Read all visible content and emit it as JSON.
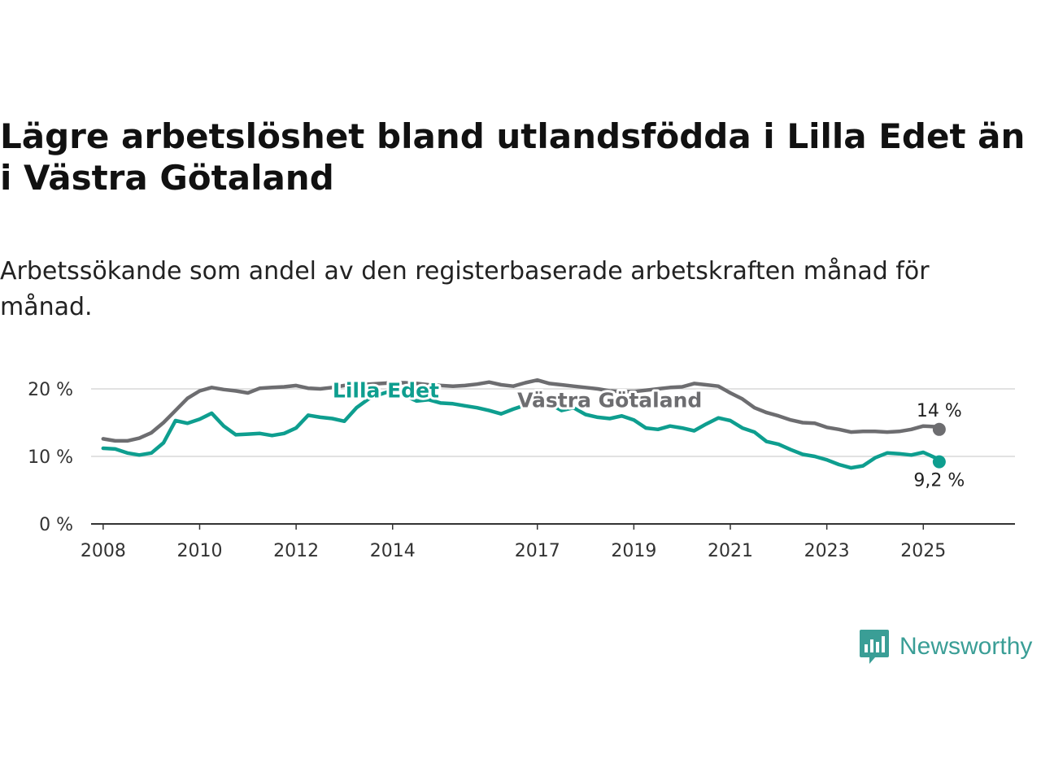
{
  "title": "Lägre arbetslöshet bland utlandsfödda i Lilla Edet än i Västra Götaland",
  "subtitle": "Arbetssökande som andel av den registerbaserade arbetskraften månad för månad.",
  "brand": {
    "name": "Newsworthy",
    "icon": "newsworthy-logo-icon",
    "color": "#3a9e96"
  },
  "chart_data": {
    "type": "line",
    "title": "Lägre arbetslöshet bland utlandsfödda i Lilla Edet än i Västra Götaland",
    "subtitle": "Arbetssökande som andel av den registerbaserade arbetskraften månad för månad.",
    "xlabel": "",
    "ylabel": "",
    "xlim": [
      2007.75,
      2026.9
    ],
    "ylim": [
      0,
      20
    ],
    "y_ticks": [
      0,
      10,
      20
    ],
    "y_tick_labels": [
      "0 %",
      "10 %",
      "20 %"
    ],
    "x_ticks": [
      2008,
      2010,
      2012,
      2014,
      2017,
      2019,
      2021,
      2023,
      2025
    ],
    "x_tick_labels": [
      "2008",
      "2010",
      "2012",
      "2014",
      "2017",
      "2019",
      "2021",
      "2023",
      "2025"
    ],
    "grid": true,
    "legend": "inline labels",
    "series": [
      {
        "name": "Västra Götaland",
        "color": "#6d6d70",
        "end_label": "14 %",
        "x": [
          2008.0,
          2008.25,
          2008.5,
          2008.75,
          2009.0,
          2009.25,
          2009.5,
          2009.75,
          2010.0,
          2010.25,
          2010.5,
          2010.75,
          2011.0,
          2011.25,
          2011.5,
          2011.75,
          2012.0,
          2012.25,
          2012.5,
          2012.75,
          2013.0,
          2013.25,
          2013.5,
          2013.75,
          2014.0,
          2014.25,
          2014.5,
          2014.75,
          2015.0,
          2015.25,
          2015.5,
          2015.75,
          2016.0,
          2016.25,
          2016.5,
          2016.75,
          2017.0,
          2017.25,
          2017.5,
          2017.75,
          2018.0,
          2018.25,
          2018.5,
          2018.75,
          2019.0,
          2019.25,
          2019.5,
          2019.75,
          2020.0,
          2020.25,
          2020.5,
          2020.75,
          2021.0,
          2021.25,
          2021.5,
          2021.75,
          2022.0,
          2022.25,
          2022.5,
          2022.75,
          2023.0,
          2023.25,
          2023.5,
          2023.75,
          2024.0,
          2024.25,
          2024.5,
          2024.75,
          2025.0,
          2025.25,
          2025.33
        ],
        "values": [
          12.6,
          12.3,
          12.3,
          12.7,
          13.5,
          15.0,
          16.8,
          18.6,
          19.7,
          20.2,
          19.9,
          19.7,
          19.4,
          20.1,
          20.2,
          20.3,
          20.5,
          20.1,
          20.0,
          20.2,
          20.5,
          20.6,
          20.7,
          20.8,
          20.9,
          20.9,
          20.8,
          20.6,
          20.5,
          20.4,
          20.5,
          20.7,
          21.0,
          20.6,
          20.4,
          20.9,
          21.3,
          20.8,
          20.6,
          20.4,
          20.2,
          20.0,
          19.7,
          19.6,
          19.6,
          19.8,
          20.0,
          20.2,
          20.3,
          20.8,
          20.6,
          20.4,
          19.4,
          18.5,
          17.2,
          16.5,
          16.0,
          15.4,
          15.0,
          14.9,
          14.3,
          14.0,
          13.6,
          13.7,
          13.7,
          13.6,
          13.7,
          14.0,
          14.5,
          14.4,
          14.0
        ]
      },
      {
        "name": "Lilla Edet",
        "color": "#0e9e8f",
        "end_label": "9,2 %",
        "x": [
          2008.0,
          2008.25,
          2008.5,
          2008.75,
          2009.0,
          2009.25,
          2009.5,
          2009.75,
          2010.0,
          2010.25,
          2010.5,
          2010.75,
          2011.0,
          2011.25,
          2011.5,
          2011.75,
          2012.0,
          2012.25,
          2012.5,
          2012.75,
          2013.0,
          2013.25,
          2013.5,
          2013.75,
          2014.0,
          2014.25,
          2014.5,
          2014.75,
          2015.0,
          2015.25,
          2015.5,
          2015.75,
          2016.0,
          2016.25,
          2016.5,
          2016.75,
          2017.0,
          2017.25,
          2017.5,
          2017.75,
          2018.0,
          2018.25,
          2018.5,
          2018.75,
          2019.0,
          2019.25,
          2019.5,
          2019.75,
          2020.0,
          2020.25,
          2020.5,
          2020.75,
          2021.0,
          2021.25,
          2021.5,
          2021.75,
          2022.0,
          2022.25,
          2022.5,
          2022.75,
          2023.0,
          2023.25,
          2023.5,
          2023.75,
          2024.0,
          2024.25,
          2024.5,
          2024.75,
          2025.0,
          2025.25,
          2025.33
        ],
        "values": [
          11.2,
          11.1,
          10.5,
          10.2,
          10.5,
          12.0,
          15.3,
          14.9,
          15.5,
          16.4,
          14.5,
          13.2,
          13.3,
          13.4,
          13.1,
          13.4,
          14.2,
          16.1,
          15.8,
          15.6,
          15.2,
          17.2,
          18.5,
          19.2,
          19.8,
          19.0,
          18.2,
          18.4,
          17.9,
          17.8,
          17.5,
          17.2,
          16.8,
          16.3,
          17.0,
          17.6,
          18.5,
          17.8,
          16.8,
          17.2,
          16.2,
          15.8,
          15.6,
          16.0,
          15.4,
          14.2,
          14.0,
          14.5,
          14.2,
          13.8,
          14.8,
          15.7,
          15.3,
          14.2,
          13.6,
          12.2,
          11.8,
          11.0,
          10.3,
          10.0,
          9.5,
          8.8,
          8.3,
          8.6,
          9.8,
          10.5,
          10.4,
          10.2,
          10.6,
          9.8,
          9.2
        ]
      }
    ],
    "annotations": [
      {
        "text": "Lilla Edet",
        "series": "Lilla Edet",
        "x": 2013.86,
        "y": 19.8
      },
      {
        "text": "Västra Götaland",
        "series": "Västra Götaland",
        "x": 2018.5,
        "y": 18.4
      }
    ]
  }
}
